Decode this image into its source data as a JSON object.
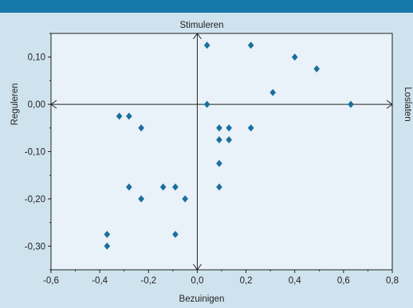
{
  "chart_data": {
    "type": "scatter",
    "title": "",
    "xlabel": "Bezuinigen",
    "ylabel": "Reguleren",
    "top_axis_label": "Stimuleren",
    "right_axis_label": "Loslaten",
    "xlim": [
      -0.6,
      0.8
    ],
    "ylim": [
      -0.35,
      0.15
    ],
    "x_ticks": [
      -0.6,
      -0.4,
      -0.2,
      0.0,
      0.2,
      0.4,
      0.6,
      0.8
    ],
    "x_tick_labels": [
      "-0,6",
      "-0,4",
      "-0,2",
      "0,0",
      "0,2",
      "0,4",
      "0,6",
      "0,8"
    ],
    "y_ticks": [
      0.1,
      0.0,
      -0.1,
      -0.2,
      -0.3
    ],
    "y_tick_labels": [
      "0,10",
      "0,00",
      "-0,10",
      "-0,20",
      "-0,30"
    ],
    "grid": false,
    "marker": "diamond",
    "colors": {
      "marker": "#1a6f9e",
      "plot_bg": "#e8f2f8",
      "page_bg": "#cfe3ee",
      "band": "#1578a8",
      "axis": "#222222"
    },
    "points": [
      {
        "x": 0.04,
        "y": 0.125
      },
      {
        "x": 0.22,
        "y": 0.125
      },
      {
        "x": 0.4,
        "y": 0.1
      },
      {
        "x": 0.49,
        "y": 0.075
      },
      {
        "x": 0.31,
        "y": 0.025
      },
      {
        "x": 0.04,
        "y": 0.0
      },
      {
        "x": 0.63,
        "y": 0.0
      },
      {
        "x": -0.32,
        "y": -0.025
      },
      {
        "x": -0.28,
        "y": -0.025
      },
      {
        "x": -0.23,
        "y": -0.05
      },
      {
        "x": 0.09,
        "y": -0.05
      },
      {
        "x": 0.13,
        "y": -0.05
      },
      {
        "x": 0.22,
        "y": -0.05
      },
      {
        "x": 0.09,
        "y": -0.075
      },
      {
        "x": 0.13,
        "y": -0.075
      },
      {
        "x": 0.09,
        "y": -0.125
      },
      {
        "x": -0.28,
        "y": -0.175
      },
      {
        "x": -0.14,
        "y": -0.175
      },
      {
        "x": -0.09,
        "y": -0.175
      },
      {
        "x": 0.09,
        "y": -0.175
      },
      {
        "x": -0.23,
        "y": -0.2
      },
      {
        "x": -0.05,
        "y": -0.2
      },
      {
        "x": -0.37,
        "y": -0.275
      },
      {
        "x": -0.09,
        "y": -0.275
      },
      {
        "x": -0.37,
        "y": -0.3
      }
    ]
  }
}
